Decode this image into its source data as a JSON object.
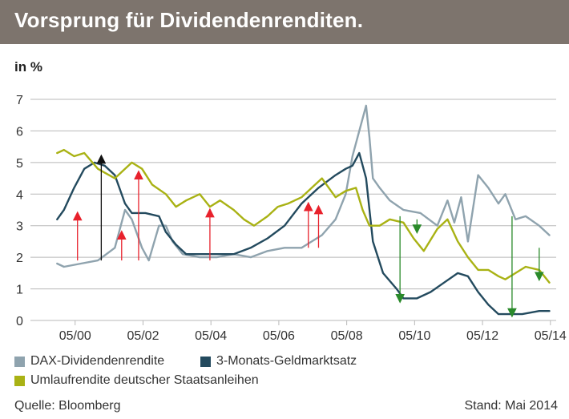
{
  "header": {
    "title": "Vorsprung für Dividendenrenditen."
  },
  "chart_data": {
    "type": "line",
    "title": "Vorsprung für Dividendenrenditen.",
    "ylabel": "in %",
    "xlabel": "",
    "ylim": [
      0,
      7
    ],
    "xlim": [
      1999.25,
      2014.5
    ],
    "y_ticks": [
      0,
      1,
      2,
      3,
      4,
      5,
      6,
      7
    ],
    "x_ticks": [
      {
        "label": "05/00",
        "value": 2000.33
      },
      {
        "label": "05/02",
        "value": 2002.33
      },
      {
        "label": "05/04",
        "value": 2004.33
      },
      {
        "label": "05/06",
        "value": 2006.33
      },
      {
        "label": "05/08",
        "value": 2008.33
      },
      {
        "label": "05/10",
        "value": 2010.33
      },
      {
        "label": "05/12",
        "value": 2012.33
      },
      {
        "label": "05/14",
        "value": 2014.33
      }
    ],
    "grid": true,
    "series": [
      {
        "name": "DAX-Dividendenrendite",
        "color": "#8fa3ae",
        "x": [
          1999.8,
          2000.0,
          2000.5,
          2001.0,
          2001.5,
          2001.8,
          2002.0,
          2002.3,
          2002.5,
          2002.8,
          2003.0,
          2003.2,
          2003.5,
          2004.0,
          2004.5,
          2005.0,
          2005.5,
          2006.0,
          2006.5,
          2007.0,
          2007.3,
          2007.6,
          2008.0,
          2008.3,
          2008.5,
          2008.7,
          2008.9,
          2009.0,
          2009.1,
          2009.3,
          2009.6,
          2010.0,
          2010.5,
          2011.0,
          2011.3,
          2011.5,
          2011.7,
          2011.9,
          2012.2,
          2012.5,
          2012.8,
          2013.0,
          2013.3,
          2013.6,
          2014.0,
          2014.3
        ],
        "y": [
          1.8,
          1.7,
          1.8,
          1.9,
          2.3,
          3.5,
          3.2,
          2.3,
          1.9,
          3.0,
          3.0,
          2.5,
          2.1,
          2.0,
          2.0,
          2.1,
          2.0,
          2.2,
          2.3,
          2.3,
          2.5,
          2.7,
          3.2,
          4.0,
          5.2,
          6.0,
          6.8,
          5.8,
          4.5,
          4.2,
          3.8,
          3.5,
          3.4,
          3.0,
          3.8,
          3.1,
          3.9,
          2.5,
          4.6,
          4.2,
          3.7,
          4.0,
          3.2,
          3.3,
          3.0,
          2.7
        ]
      },
      {
        "name": "3-Monats-Geldmarktsatz",
        "color": "#234a5e",
        "x": [
          1999.8,
          2000.0,
          2000.3,
          2000.6,
          2000.9,
          2001.2,
          2001.5,
          2001.8,
          2002.0,
          2002.4,
          2002.8,
          2003.0,
          2003.3,
          2003.6,
          2004.0,
          2004.5,
          2005.0,
          2005.5,
          2006.0,
          2006.5,
          2007.0,
          2007.5,
          2008.0,
          2008.3,
          2008.5,
          2008.7,
          2008.9,
          2009.1,
          2009.4,
          2009.8,
          2010.0,
          2010.4,
          2010.8,
          2011.2,
          2011.6,
          2011.9,
          2012.2,
          2012.5,
          2012.8,
          2013.0,
          2013.5,
          2014.0,
          2014.3
        ],
        "y": [
          3.2,
          3.5,
          4.2,
          4.8,
          5.0,
          4.9,
          4.6,
          3.7,
          3.4,
          3.4,
          3.3,
          2.8,
          2.4,
          2.1,
          2.1,
          2.1,
          2.1,
          2.3,
          2.6,
          3.0,
          3.7,
          4.2,
          4.6,
          4.8,
          4.9,
          5.3,
          4.5,
          2.5,
          1.5,
          1.0,
          0.7,
          0.7,
          0.9,
          1.2,
          1.5,
          1.4,
          0.9,
          0.5,
          0.2,
          0.2,
          0.2,
          0.3,
          0.3
        ]
      },
      {
        "name": "Umlaufrendite deutscher Staatsanleihen",
        "color": "#a9b214",
        "x": [
          1999.8,
          2000.0,
          2000.3,
          2000.6,
          2001.0,
          2001.5,
          2001.8,
          2002.0,
          2002.3,
          2002.6,
          2003.0,
          2003.3,
          2003.6,
          2004.0,
          2004.3,
          2004.6,
          2005.0,
          2005.3,
          2005.6,
          2006.0,
          2006.3,
          2006.6,
          2007.0,
          2007.3,
          2007.6,
          2008.0,
          2008.3,
          2008.6,
          2008.8,
          2009.0,
          2009.3,
          2009.6,
          2010.0,
          2010.3,
          2010.6,
          2011.0,
          2011.3,
          2011.6,
          2011.9,
          2012.2,
          2012.5,
          2012.8,
          2013.0,
          2013.3,
          2013.6,
          2014.0,
          2014.3
        ],
        "y": [
          5.3,
          5.4,
          5.2,
          5.3,
          4.8,
          4.5,
          4.8,
          5.0,
          4.8,
          4.3,
          4.0,
          3.6,
          3.8,
          4.0,
          3.6,
          3.8,
          3.5,
          3.2,
          3.0,
          3.3,
          3.6,
          3.7,
          3.9,
          4.2,
          4.5,
          3.9,
          4.1,
          4.2,
          3.5,
          3.0,
          3.0,
          3.2,
          3.1,
          2.6,
          2.2,
          2.9,
          3.2,
          2.5,
          2.0,
          1.6,
          1.6,
          1.4,
          1.3,
          1.5,
          1.7,
          1.6,
          1.2
        ]
      }
    ],
    "annotations": [
      {
        "type": "arrow",
        "x": 2001.1,
        "y_from": 1.9,
        "y_to": 5.2,
        "color": "#111111"
      },
      {
        "type": "arrow",
        "x": 2000.4,
        "y_from": 1.9,
        "y_to": 3.4,
        "color": "#e8212c"
      },
      {
        "type": "arrow",
        "x": 2001.7,
        "y_from": 1.9,
        "y_to": 2.8,
        "color": "#e8212c"
      },
      {
        "type": "arrow",
        "x": 2002.2,
        "y_from": 1.9,
        "y_to": 4.7,
        "color": "#e8212c"
      },
      {
        "type": "arrow",
        "x": 2004.3,
        "y_from": 1.9,
        "y_to": 3.5,
        "color": "#e8212c"
      },
      {
        "type": "arrow",
        "x": 2007.2,
        "y_from": 2.3,
        "y_to": 3.7,
        "color": "#e8212c"
      },
      {
        "type": "arrow",
        "x": 2007.5,
        "y_from": 2.3,
        "y_to": 3.6,
        "color": "#e8212c"
      },
      {
        "type": "arrow",
        "x": 2009.9,
        "y_from": 3.3,
        "y_to": 0.6,
        "color": "#2a8a2a"
      },
      {
        "type": "arrow",
        "x": 2010.4,
        "y_from": 3.2,
        "y_to": 2.8,
        "color": "#2a8a2a"
      },
      {
        "type": "arrow",
        "x": 2013.2,
        "y_from": 3.3,
        "y_to": 0.15,
        "color": "#2a8a2a"
      },
      {
        "type": "arrow",
        "x": 2014.0,
        "y_from": 2.3,
        "y_to": 1.3,
        "color": "#2a8a2a"
      }
    ]
  },
  "unit_label": "in %",
  "legend": [
    {
      "label": "DAX-Dividendenrendite",
      "color": "#8fa3ae"
    },
    {
      "label": "3-Monats-Geldmarktsatz",
      "color": "#234a5e"
    },
    {
      "label": "Umlaufrendite deutscher Staatsanleihen",
      "color": "#a9b214"
    }
  ],
  "footer": {
    "source": "Quelle: Bloomberg",
    "date": "Stand: Mai 2014"
  }
}
